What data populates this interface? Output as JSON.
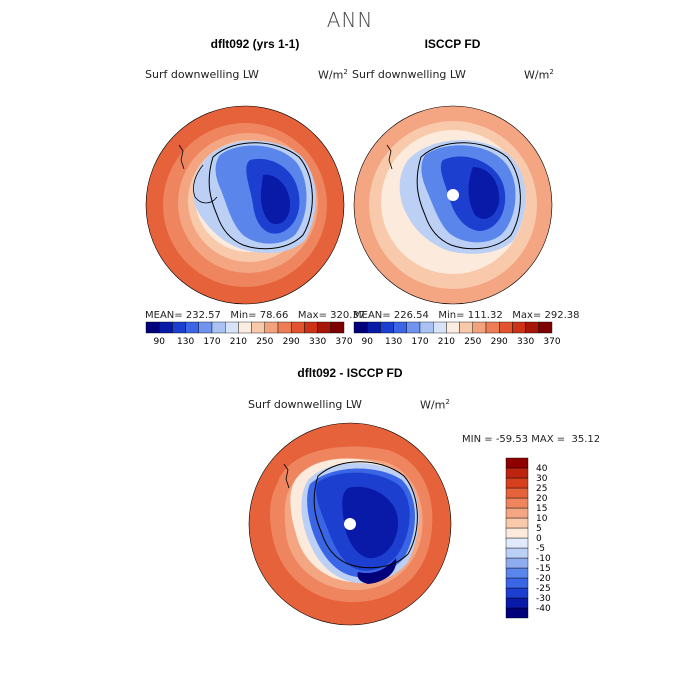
{
  "title": "ANN",
  "panels": [
    {
      "title": "dflt092 (yrs 1-1)",
      "field": "Surf downwelling LW",
      "units_base": "W/m",
      "units_exp": "2",
      "stats": {
        "mean_label": "MEAN=",
        "mean": "232.57",
        "min_label": "Min=",
        "min": "78.66",
        "max_label": "Max=",
        "max": "320.37"
      }
    },
    {
      "title": "ISCCP FD",
      "field": "Surf downwelling LW",
      "units_base": "W/m",
      "units_exp": "2",
      "stats": {
        "mean_label": "MEAN=",
        "mean": "226.54",
        "min_label": "Min=",
        "min": "111.32",
        "max_label": "Max=",
        "max": "292.38"
      }
    }
  ],
  "top_colorbar": {
    "colors": [
      "#00007a",
      "#0a1aa8",
      "#1d3fd0",
      "#3a66e6",
      "#6f93ee",
      "#a9c1f3",
      "#d7e3fa",
      "#fcede2",
      "#f8c8ab",
      "#f3a27e",
      "#ec7d57",
      "#e2542f",
      "#cc3216",
      "#a81608",
      "#7d0000"
    ],
    "labels": [
      "90",
      "130",
      "170",
      "210",
      "250",
      "290",
      "330",
      "370"
    ]
  },
  "diff": {
    "title": "dflt092 - ISCCP FD",
    "field": "Surf downwelling LW",
    "units_base": "W/m",
    "units_exp": "2",
    "minmax": {
      "min_label": "MIN =",
      "min": "-59.53",
      "max_label": "MAX =",
      "max": "35.12"
    }
  },
  "diff_colorbar": {
    "colors": [
      "#00007a",
      "#0a1aa8",
      "#1d3fd0",
      "#3a66e6",
      "#5a86ec",
      "#8eacf0",
      "#bcd0f5",
      "#e1eafb",
      "#fcebdc",
      "#f8c9ab",
      "#f4a582",
      "#ef855e",
      "#e6623b",
      "#d6401f",
      "#bc2410",
      "#8e0000"
    ],
    "labels": [
      "-40",
      "-30",
      "-25",
      "-20",
      "-15",
      "-10",
      "-5",
      "0",
      "5",
      "10",
      "15",
      "20",
      "25",
      "30",
      "40"
    ]
  },
  "colors": {
    "land_low": "#0a1aa8",
    "ocean_high": "#e6623b",
    "outline": "#000000"
  }
}
